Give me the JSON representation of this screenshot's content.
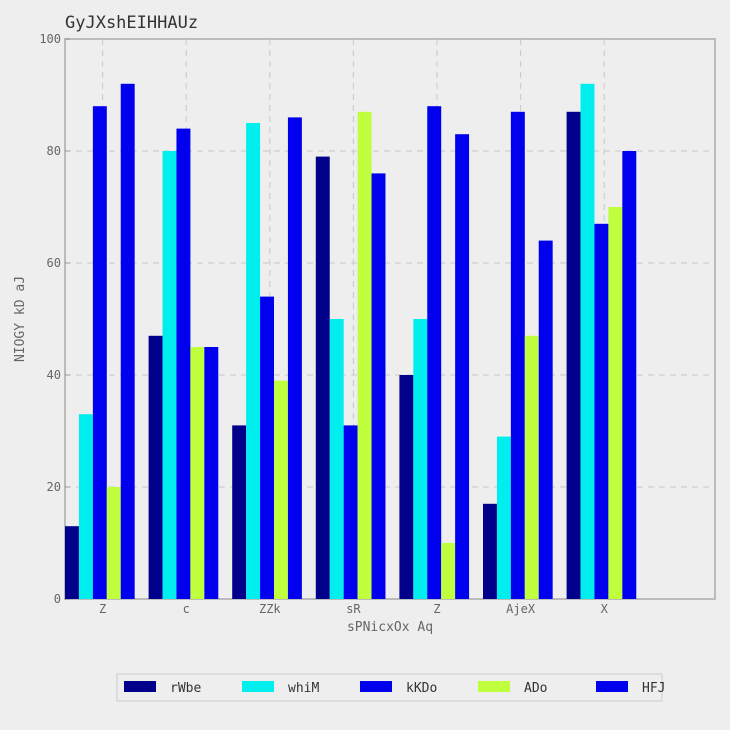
{
  "chart_data": {
    "type": "bar",
    "title": "GyJXshEIHHAUz",
    "xlabel": "sPNicxOx Aq",
    "ylabel": "NIOGY kD aJ",
    "categories": [
      "Z",
      "c",
      "ZZk",
      "sR",
      "Z",
      "AjeX",
      "X"
    ],
    "ylim": [
      0,
      100
    ],
    "yticks": [
      0,
      20,
      40,
      60,
      80,
      100
    ],
    "grid": true,
    "legend_position": "bottom",
    "series": [
      {
        "name": "rWbe",
        "color": "#00008b",
        "values": [
          13,
          47,
          31,
          79,
          40,
          17,
          87
        ]
      },
      {
        "name": "whiM",
        "color": "#00eeee",
        "values": [
          33,
          80,
          85,
          50,
          50,
          29,
          92
        ]
      },
      {
        "name": "kKDo",
        "color": "#0000ee",
        "values": [
          88,
          84,
          54,
          31,
          88,
          87,
          67
        ]
      },
      {
        "name": "ADo",
        "color": "#c0ff3e",
        "values": [
          20,
          45,
          39,
          87,
          10,
          47,
          70
        ]
      },
      {
        "name": "HFJ",
        "color": "#0000ee",
        "values": [
          92,
          45,
          86,
          76,
          83,
          64,
          80
        ]
      }
    ]
  }
}
